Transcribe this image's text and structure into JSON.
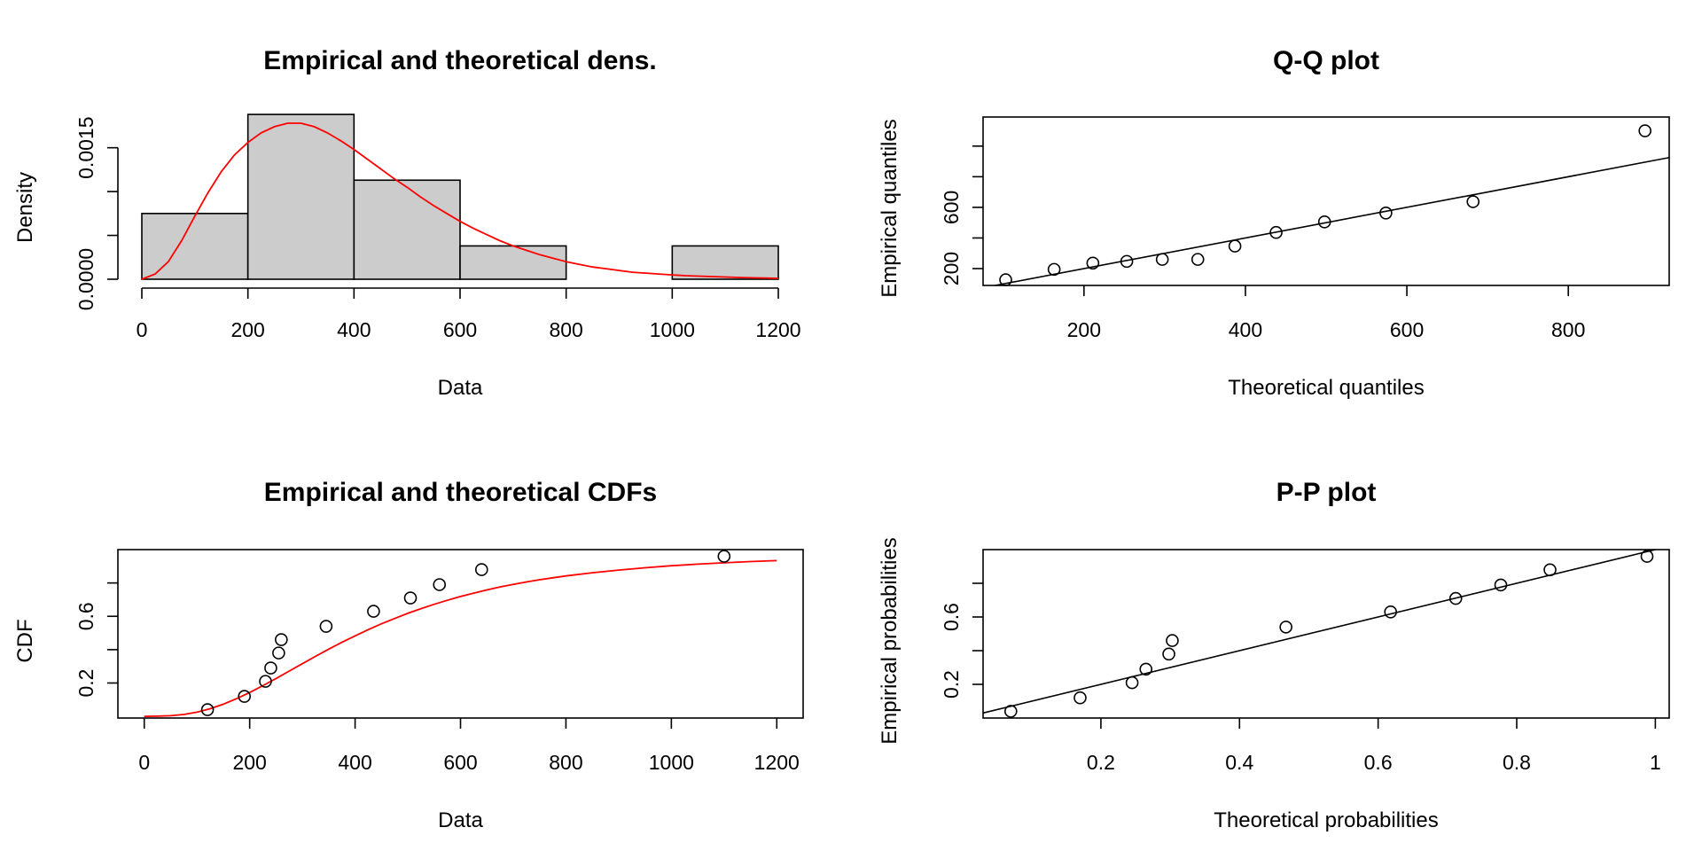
{
  "chart_data": [
    {
      "id": "density",
      "type": "histogram",
      "title": "Empirical and theoretical dens.",
      "xlabel": "Data",
      "ylabel": "Density",
      "xlim": [
        0,
        1200
      ],
      "ylim": [
        0,
        0.0018
      ],
      "x_ticks": [
        0,
        200,
        400,
        600,
        800,
        1000,
        1200
      ],
      "y_ticks": [
        0,
        0.0005,
        0.001,
        0.0015
      ],
      "y_tick_labels": [
        "0.0000",
        "",
        "",
        "0.0015"
      ],
      "bins": [
        {
          "from": 0,
          "to": 200,
          "density": 0.00075
        },
        {
          "from": 200,
          "to": 400,
          "density": 0.00188
        },
        {
          "from": 400,
          "to": 600,
          "density": 0.00113
        },
        {
          "from": 600,
          "to": 800,
          "density": 0.00038
        },
        {
          "from": 800,
          "to": 1000,
          "density": 0
        },
        {
          "from": 1000,
          "to": 1200,
          "density": 0.00038
        }
      ],
      "curve_color": "#ff0000",
      "bar_color": "#cccccc",
      "curve": {
        "x": [
          0,
          25,
          50,
          75,
          100,
          125,
          150,
          175,
          200,
          225,
          250,
          275,
          300,
          325,
          350,
          375,
          400,
          425,
          450,
          475,
          500,
          525,
          550,
          575,
          600,
          625,
          650,
          675,
          700,
          725,
          750,
          775,
          800,
          825,
          850,
          875,
          900,
          925,
          950,
          975,
          1000,
          1025,
          1050,
          1075,
          1100,
          1125,
          1150,
          1175,
          1200
        ],
        "y": [
          0,
          6e-05,
          0.0002,
          0.00044,
          0.00072,
          0.00099,
          0.00123,
          0.00142,
          0.00156,
          0.00167,
          0.00174,
          0.00178,
          0.00178,
          0.00174,
          0.00167,
          0.00158,
          0.00148,
          0.00137,
          0.00126,
          0.00115,
          0.00105,
          0.00094,
          0.00084,
          0.00075,
          0.00066,
          0.00058,
          0.00051,
          0.00044,
          0.00038,
          0.00033,
          0.00028,
          0.00024,
          0.0002,
          0.00017,
          0.00014,
          0.00012,
          0.0001,
          8e-05,
          7e-05,
          6e-05,
          5e-05,
          4e-05,
          3.5e-05,
          3e-05,
          2.5e-05,
          2e-05,
          1.6e-05,
          1.3e-05,
          1e-05
        ]
      }
    },
    {
      "id": "qq",
      "type": "scatter",
      "title": "Q-Q plot",
      "xlabel": "Theoretical quantiles",
      "ylabel": "Empirical quantiles",
      "xlim": [
        75,
        925
      ],
      "ylim": [
        90,
        1190
      ],
      "x_ticks": [
        200,
        400,
        600,
        800
      ],
      "y_ticks": [
        200,
        400,
        600,
        800,
        1000
      ],
      "y_tick_labels": [
        "200",
        "",
        "600",
        "",
        ""
      ],
      "points": {
        "x": [
          103,
          163,
          211,
          253,
          297,
          341,
          387,
          438,
          498,
          574,
          682,
          895
        ],
        "y": [
          127,
          195,
          236,
          247,
          260,
          260,
          347,
          436,
          505,
          563,
          637,
          1100
        ]
      },
      "reference_line": {
        "x": [
          75,
          925
        ],
        "y": [
          75,
          925
        ]
      }
    },
    {
      "id": "cdf",
      "type": "line",
      "title": "Empirical and theoretical CDFs",
      "xlabel": "Data",
      "ylabel": "CDF",
      "xlim": [
        -50,
        1250
      ],
      "ylim": [
        -0.01,
        1.0
      ],
      "x_ticks": [
        0,
        200,
        400,
        600,
        800,
        1000,
        1200
      ],
      "y_ticks": [
        0.2,
        0.4,
        0.6,
        0.8
      ],
      "y_tick_labels": [
        "0.2",
        "",
        "0.6",
        ""
      ],
      "curve_color": "#ff0000",
      "points": {
        "x": [
          120,
          190,
          230,
          240,
          255,
          260,
          345,
          435,
          505,
          560,
          640,
          1100
        ],
        "y": [
          0.04,
          0.12,
          0.21,
          0.29,
          0.38,
          0.46,
          0.54,
          0.63,
          0.71,
          0.79,
          0.88,
          0.96
        ]
      },
      "curve": {
        "x": [
          0,
          25,
          50,
          75,
          100,
          125,
          150,
          175,
          200,
          225,
          250,
          275,
          300,
          325,
          350,
          375,
          400,
          425,
          450,
          475,
          500,
          525,
          550,
          575,
          600,
          625,
          650,
          675,
          700,
          725,
          750,
          775,
          800,
          850,
          900,
          950,
          1000,
          1050,
          1100,
          1150,
          1200
        ],
        "y": [
          0,
          0.001,
          0.004,
          0.011,
          0.025,
          0.046,
          0.073,
          0.106,
          0.143,
          0.184,
          0.227,
          0.272,
          0.316,
          0.36,
          0.403,
          0.444,
          0.483,
          0.52,
          0.555,
          0.587,
          0.618,
          0.646,
          0.672,
          0.696,
          0.719,
          0.739,
          0.758,
          0.776,
          0.791,
          0.806,
          0.819,
          0.831,
          0.842,
          0.861,
          0.877,
          0.891,
          0.903,
          0.913,
          0.921,
          0.928,
          0.934
        ]
      }
    },
    {
      "id": "pp",
      "type": "scatter",
      "title": "P-P plot",
      "xlabel": "Theoretical probabilities",
      "ylabel": "Empirical probabilities",
      "xlim": [
        0.03,
        1.02
      ],
      "ylim": [
        0.0,
        1.0
      ],
      "x_ticks": [
        0.2,
        0.4,
        0.6,
        0.8,
        1.0
      ],
      "y_ticks": [
        0.2,
        0.4,
        0.6,
        0.8
      ],
      "y_tick_labels": [
        "0.2",
        "",
        "0.6",
        ""
      ],
      "points": {
        "x": [
          0.07,
          0.17,
          0.245,
          0.265,
          0.298,
          0.303,
          0.467,
          0.618,
          0.712,
          0.777,
          0.848,
          0.988
        ],
        "y": [
          0.04,
          0.12,
          0.21,
          0.29,
          0.38,
          0.46,
          0.54,
          0.63,
          0.71,
          0.79,
          0.88,
          0.96
        ]
      },
      "reference_line": {
        "x": [
          0.03,
          1.02
        ],
        "y": [
          0.03,
          1.02
        ]
      }
    }
  ]
}
